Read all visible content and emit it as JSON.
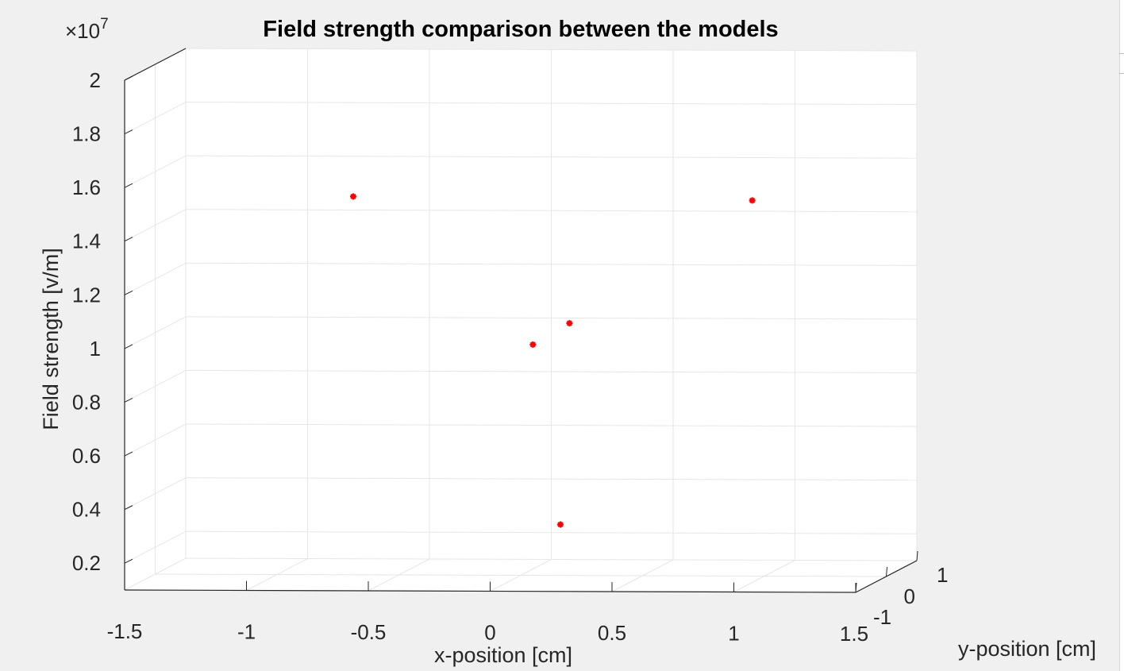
{
  "chart_data": {
    "type": "scatter",
    "title": "Field strength comparison between the models",
    "xlabel": "x-position [cm]",
    "ylabel": "y-position [cm]",
    "zlabel": "Field strength [v/m]",
    "exponent_label": "×10",
    "exponent_power": "7",
    "xlim": [
      -1.5,
      1.5
    ],
    "ylim": [
      -1,
      1
    ],
    "zlim": [
      0.1,
      2.0
    ],
    "z_scale_exponent": 7,
    "x_ticks": [
      -1.5,
      -1,
      -0.5,
      0,
      0.5,
      1,
      1.5
    ],
    "x_tick_labels": [
      "-1.5",
      "-1",
      "-0.5",
      "0",
      "0.5",
      "1",
      "1.5"
    ],
    "y_ticks": [
      -1,
      0,
      1
    ],
    "y_tick_labels": [
      "-1",
      "0",
      "1"
    ],
    "z_ticks": [
      0.2,
      0.4,
      0.6,
      0.8,
      1.0,
      1.2,
      1.4,
      1.6,
      1.8,
      2.0
    ],
    "z_tick_labels": [
      "0.2",
      "0.4",
      "0.6",
      "0.8",
      "1",
      "1.2",
      "1.4",
      "1.6",
      "1.8",
      "2"
    ],
    "grid": true,
    "marker": "asterisk",
    "marker_color": "#ff0000",
    "series": [
      {
        "points": [
          {
            "x": -0.75,
            "y": 0.5,
            "z": 1.48
          },
          {
            "x": 0.95,
            "y": 0.0,
            "z": 1.5
          },
          {
            "x": 0.2,
            "y": 0.0,
            "z": 1.04
          },
          {
            "x": 0.05,
            "y": 0.0,
            "z": 0.96
          },
          {
            "x": 0.1,
            "y": 0.5,
            "z": 0.26
          }
        ]
      }
    ]
  }
}
